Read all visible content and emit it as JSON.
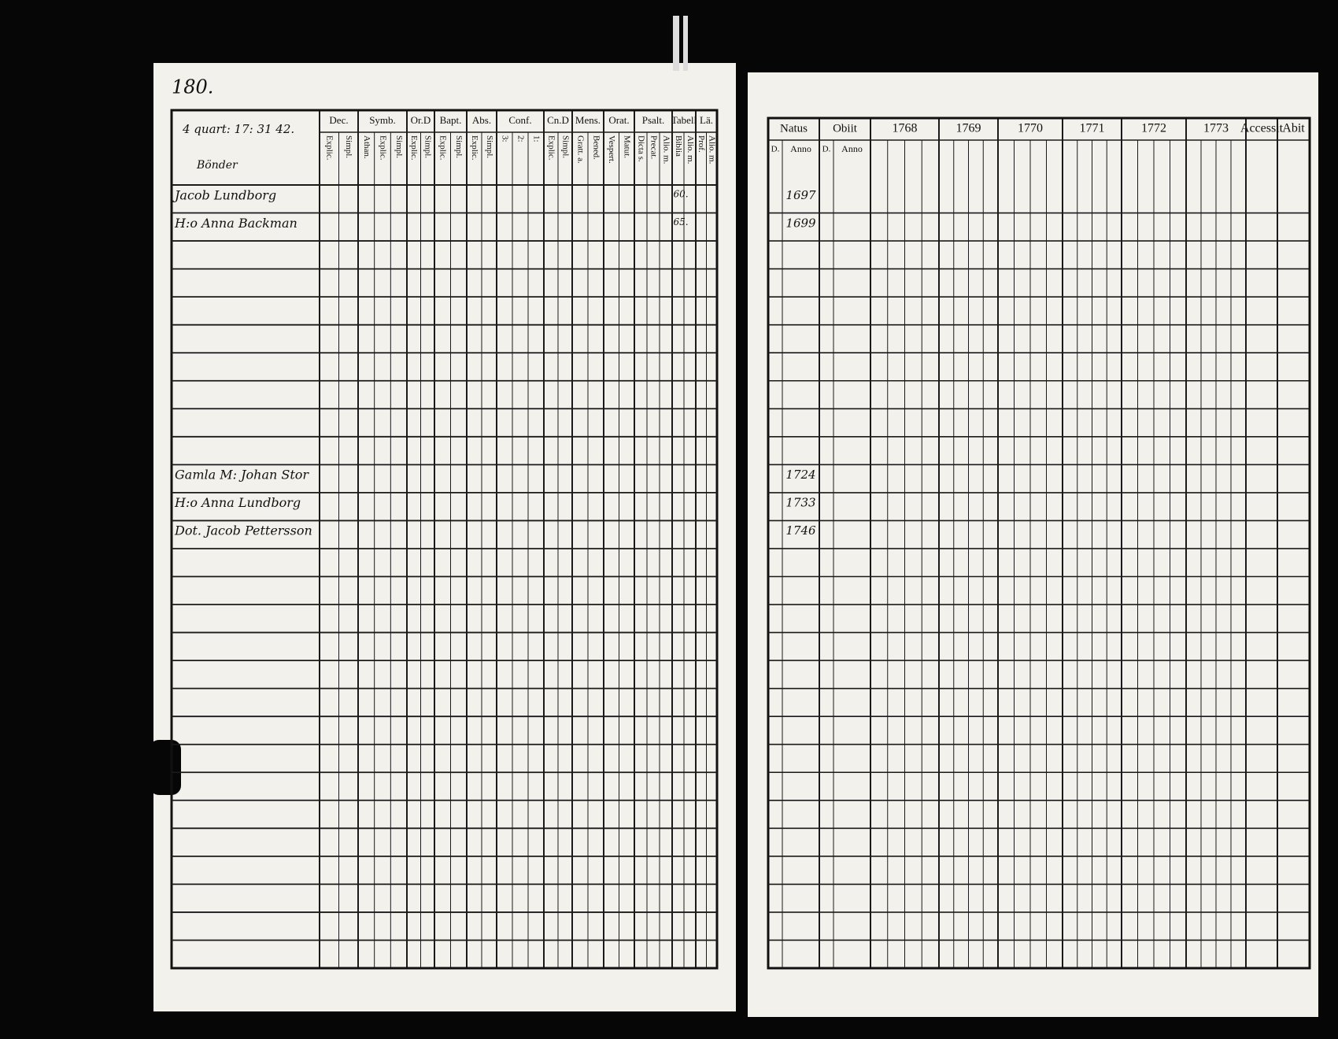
{
  "left_page": {
    "page_number": "180.",
    "header_note": "4 quart: 17: 31 42.",
    "section_heading": "Bönder",
    "columns": [
      {
        "label": "Dec.",
        "sub": [
          "Explic.",
          "Simpl."
        ]
      },
      {
        "label": "Symb.",
        "sub": [
          "Athan.",
          "Explic.",
          "Simpl."
        ]
      },
      {
        "label": "Or.D",
        "sub": [
          "Explic.",
          "Simpl."
        ]
      },
      {
        "label": "Bapt.",
        "sub": [
          "Explic.",
          "Simpl."
        ]
      },
      {
        "label": "Abs.",
        "sub": [
          "Explic.",
          "Simpl."
        ]
      },
      {
        "label": "Conf.",
        "sub": [
          "3:",
          "2:",
          "1:"
        ]
      },
      {
        "label": "Cn.D",
        "sub": [
          "Explic.",
          "Simpl."
        ]
      },
      {
        "label": "Mens.",
        "sub": [
          "Gratt. a.",
          "Bened."
        ]
      },
      {
        "label": "Orat.",
        "sub": [
          "Vespert.",
          "Matut."
        ]
      },
      {
        "label": "Psalt.",
        "sub": [
          "Dicta s.",
          "Precat.",
          "Alio. m."
        ]
      },
      {
        "label": "Tabell",
        "sub": [
          "Biblia",
          "Alio. m."
        ]
      },
      {
        "label": "Lä.",
        "sub": [
          "Prof.",
          "Alio. m."
        ]
      }
    ],
    "households": [
      {
        "members": [
          "Jacob Lundborg",
          "H:o Anna Backman"
        ],
        "marks": [
          "60.",
          "65."
        ]
      },
      {
        "members": [
          "Gamla M: Johan Stor",
          "H:o Anna Lundborg",
          "Dot. Jacob Pettersson"
        ]
      }
    ]
  },
  "right_page": {
    "columns": [
      {
        "label": "Natus",
        "sub": [
          "D.",
          "Anno"
        ]
      },
      {
        "label": "Obiit",
        "sub": [
          "D.",
          "Anno"
        ]
      },
      {
        "label": "1768"
      },
      {
        "label": "1769"
      },
      {
        "label": "1770"
      },
      {
        "label": "1771"
      },
      {
        "label": "1772"
      },
      {
        "label": "1773"
      },
      {
        "label": "Accessit"
      },
      {
        "label": "Abit"
      }
    ],
    "birth_years": [
      [
        "1697",
        "1699"
      ],
      [
        "1724",
        "1733",
        "1746"
      ]
    ]
  }
}
